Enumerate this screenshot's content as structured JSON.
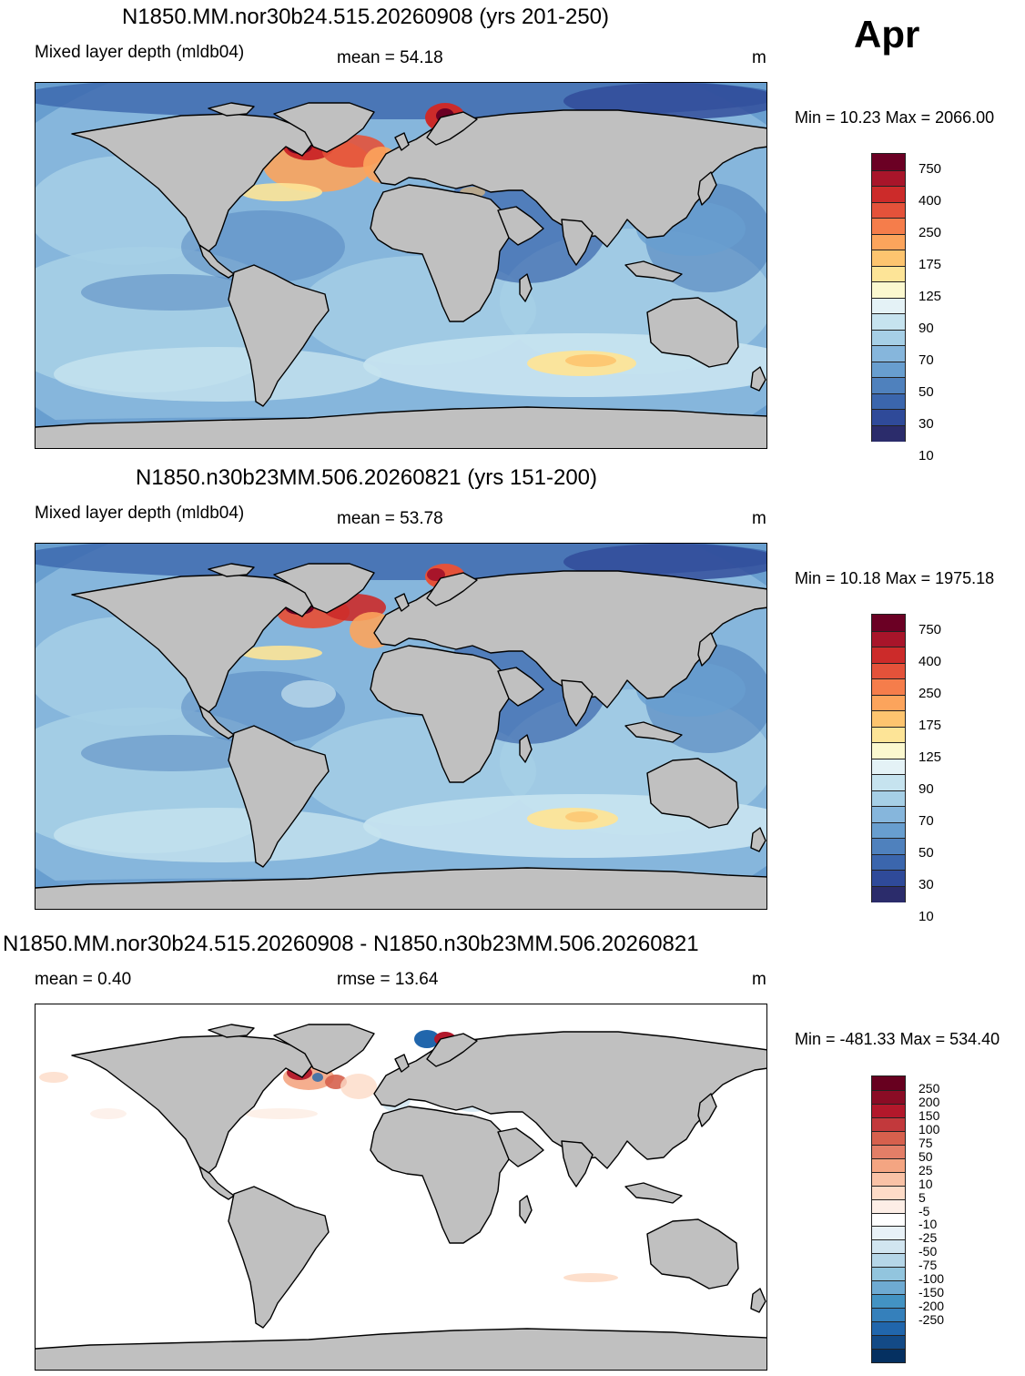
{
  "month": "Apr",
  "panels": [
    {
      "title": "N1850.MM.nor30b24.515.20260908 (yrs 201-250)",
      "left_label": "Mixed layer depth (mldb04)",
      "stat_label": "mean =  54.18",
      "units": "m",
      "minmax": "Min =  10.23 Max = 2066.00",
      "variant": "field1",
      "colorbar": {
        "colors": [
          "#2b2c6b",
          "#2f4a99",
          "#3b66ad",
          "#4f81bd",
          "#689ecf",
          "#86b6dc",
          "#a6cfe6",
          "#c6e3ef",
          "#e4f2f6",
          "#fbf8cf",
          "#fde497",
          "#fdc46f",
          "#fca45c",
          "#f57d4b",
          "#e4523a",
          "#cc2b2a",
          "#a8152a",
          "#6b0024"
        ],
        "labels": [
          "750",
          "400",
          "250",
          "175",
          "125",
          "90",
          "70",
          "50",
          "30",
          "10"
        ]
      }
    },
    {
      "title": "N1850.n30b23MM.506.20260821 (yrs 151-200)",
      "left_label": "Mixed layer depth (mldb04)",
      "stat_label": "mean =  53.78",
      "units": "m",
      "minmax": "Min =  10.18 Max = 1975.18",
      "variant": "field2",
      "colorbar": {
        "colors": [
          "#2b2c6b",
          "#2f4a99",
          "#3b66ad",
          "#4f81bd",
          "#689ecf",
          "#86b6dc",
          "#a6cfe6",
          "#c6e3ef",
          "#e4f2f6",
          "#fbf8cf",
          "#fde497",
          "#fdc46f",
          "#fca45c",
          "#f57d4b",
          "#e4523a",
          "#cc2b2a",
          "#a8152a",
          "#6b0024"
        ],
        "labels": [
          "750",
          "400",
          "250",
          "175",
          "125",
          "90",
          "70",
          "50",
          "30",
          "10"
        ]
      }
    },
    {
      "title": "N1850.MM.nor30b24.515.20260908 - N1850.n30b23MM.506.20260821",
      "left_label": "mean =   0.40",
      "stat_label": "rmse =  13.64",
      "units": "m",
      "minmax": "Min = -481.33 Max = 534.40",
      "variant": "diff",
      "colorbar": {
        "colors": [
          "#053061",
          "#134a86",
          "#2166ac",
          "#3580bb",
          "#4393c3",
          "#6eaad2",
          "#92c5de",
          "#b5d6e8",
          "#d1e5f0",
          "#e8f1f7",
          "#ffffff",
          "#fdeee6",
          "#fddbc7",
          "#f9c2a6",
          "#f4a582",
          "#e37e67",
          "#d6604d",
          "#c2393c",
          "#b2182b",
          "#8a0c25",
          "#67001f"
        ],
        "labels": [
          "250",
          "200",
          "150",
          "100",
          "75",
          "50",
          "25",
          "10",
          "5",
          "-5",
          "-10",
          "-25",
          "-50",
          "-75",
          "-100",
          "-150",
          "-200",
          "-250"
        ]
      }
    }
  ]
}
